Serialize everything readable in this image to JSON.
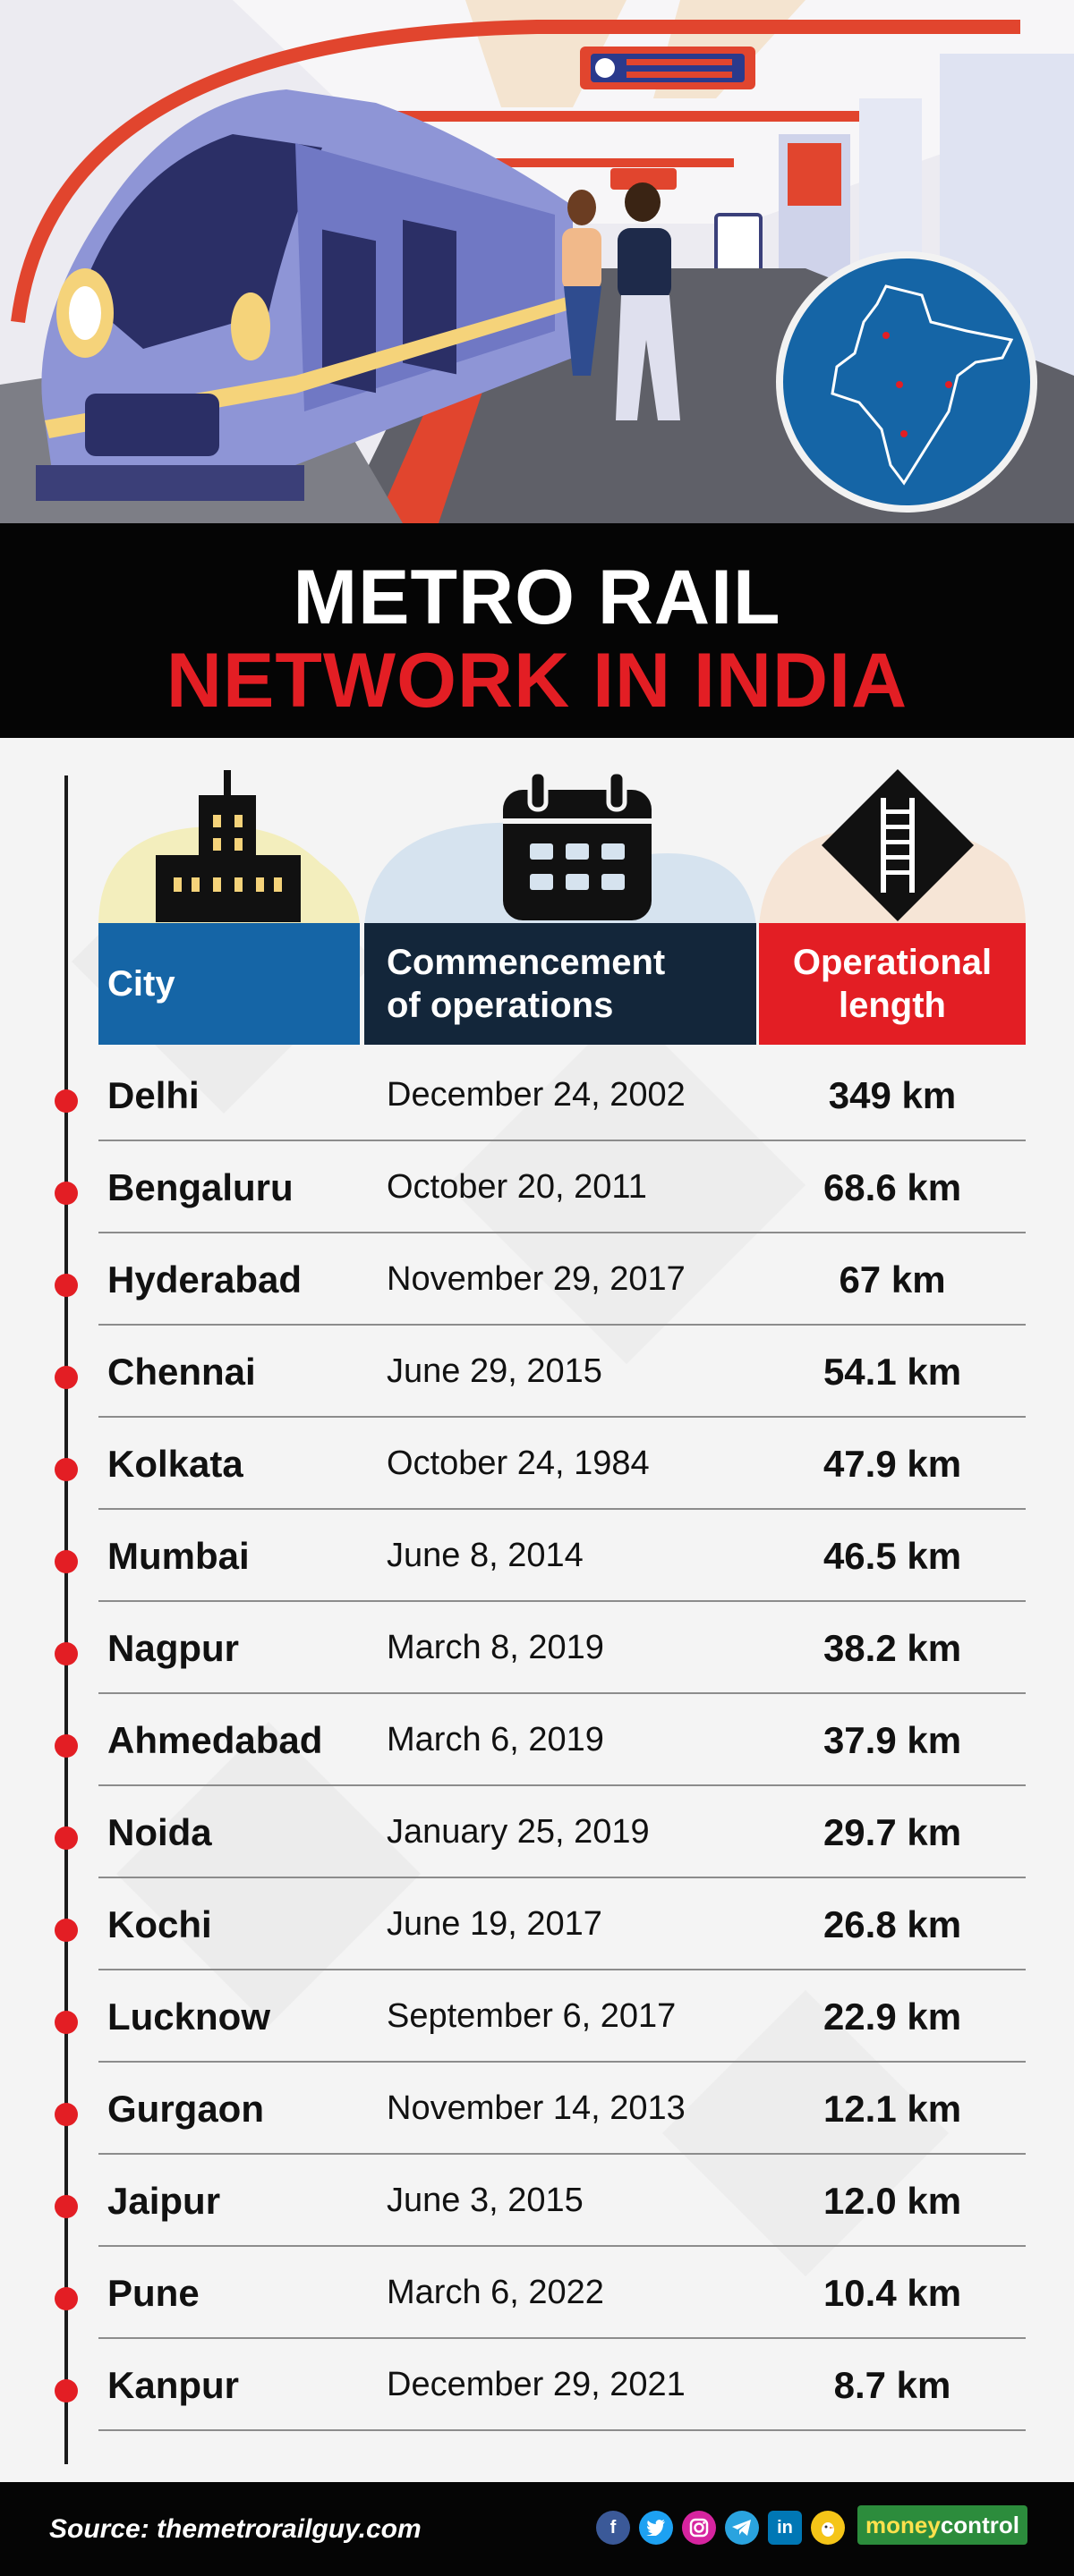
{
  "title": {
    "line1": "METRO RAIL",
    "line2": "NETWORK IN INDIA"
  },
  "table": {
    "headers": {
      "city": "City",
      "commencement_line1": "Commencement",
      "commencement_line2": "of operations",
      "length_line1": "Operational",
      "length_line2": "length"
    },
    "rows": [
      {
        "city": "Delhi",
        "date": "December 24, 2002",
        "length": "349 km"
      },
      {
        "city": "Bengaluru",
        "date": "October 20, 2011",
        "length": "68.6 km"
      },
      {
        "city": "Hyderabad",
        "date": "November 29, 2017",
        "length": "67 km"
      },
      {
        "city": "Chennai",
        "date": "June 29, 2015",
        "length": "54.1 km"
      },
      {
        "city": "Kolkata",
        "date": "October 24, 1984",
        "length": "47.9 km"
      },
      {
        "city": "Mumbai",
        "date": "June 8, 2014",
        "length": "46.5 km"
      },
      {
        "city": "Nagpur",
        "date": "March 8, 2019",
        "length": "38.2 km"
      },
      {
        "city": "Ahmedabad",
        "date": "March 6, 2019",
        "length": "37.9 km"
      },
      {
        "city": "Noida",
        "date": "January 25, 2019",
        "length": "29.7 km"
      },
      {
        "city": "Kochi",
        "date": "June 19, 2017",
        "length": "26.8 km"
      },
      {
        "city": "Lucknow",
        "date": "September 6, 2017",
        "length": "22.9 km"
      },
      {
        "city": "Gurgaon",
        "date": "November 14, 2013",
        "length": "12.1 km"
      },
      {
        "city": "Jaipur",
        "date": "June 3, 2015",
        "length": "12.0 km"
      },
      {
        "city": "Pune",
        "date": "March 6, 2022",
        "length": "10.4 km"
      },
      {
        "city": "Kanpur",
        "date": "December 29, 2021",
        "length": "8.7 km"
      }
    ]
  },
  "footer": {
    "source": "Source: themetrorailguy.com",
    "brand_part1": "money",
    "brand_part2": "control"
  },
  "icons": {
    "city": "building-icon",
    "commencement": "calendar-icon",
    "length": "track-icon",
    "social": [
      "facebook-icon",
      "twitter-icon",
      "instagram-icon",
      "telegram-icon",
      "linkedin-icon",
      "koo-icon"
    ]
  },
  "colors": {
    "accent_red": "#e31e24",
    "city_header_blue": "#1565a6",
    "commencement_header_navy": "#13263a",
    "background_black": "#050505",
    "brand_green": "#2c8c3c"
  }
}
